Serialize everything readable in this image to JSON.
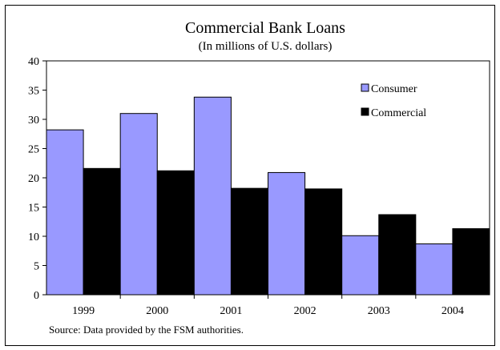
{
  "chart_data": {
    "type": "bar",
    "title": "Commercial Bank Loans",
    "subtitle": "(In millions of U.S. dollars)",
    "xlabel": "",
    "ylabel": "",
    "categories": [
      "1999",
      "2000",
      "2001",
      "2002",
      "2003",
      "2004"
    ],
    "series": [
      {
        "name": "Consumer",
        "color": "#9999ff",
        "values": [
          28.2,
          31.0,
          33.8,
          20.9,
          10.1,
          8.7
        ]
      },
      {
        "name": "Commercial",
        "color": "#000000",
        "values": [
          21.6,
          21.2,
          18.2,
          18.1,
          13.7,
          11.3
        ]
      }
    ],
    "ylim": [
      0,
      40
    ],
    "yticks": [
      0,
      5,
      10,
      15,
      20,
      25,
      30,
      35,
      40
    ],
    "grid": false,
    "legend_position": "top-right",
    "source_note": "Source: Data provided by the FSM authorities."
  }
}
